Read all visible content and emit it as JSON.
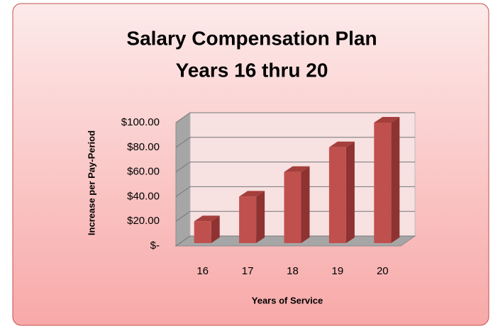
{
  "chart_data": {
    "type": "bar3d",
    "title": "Salary Compensation Plan",
    "subtitle": "Years 16 thru 20",
    "x_label": "Years of Service",
    "y_label": "Increase per Pay-Period",
    "categories": [
      "16",
      "17",
      "18",
      "19",
      "20"
    ],
    "values": [
      20,
      40,
      60,
      80,
      100
    ],
    "color": "#c0504d",
    "ylim": [
      0,
      100
    ],
    "yticks": [
      {
        "value": 0,
        "label": "$-"
      },
      {
        "value": 20,
        "label": "$20.00"
      },
      {
        "value": 40,
        "label": "$40.00"
      },
      {
        "value": 60,
        "label": "$60.00"
      },
      {
        "value": 80,
        "label": "$80.00"
      },
      {
        "value": 100,
        "label": "$100.00"
      }
    ],
    "grid": true
  }
}
